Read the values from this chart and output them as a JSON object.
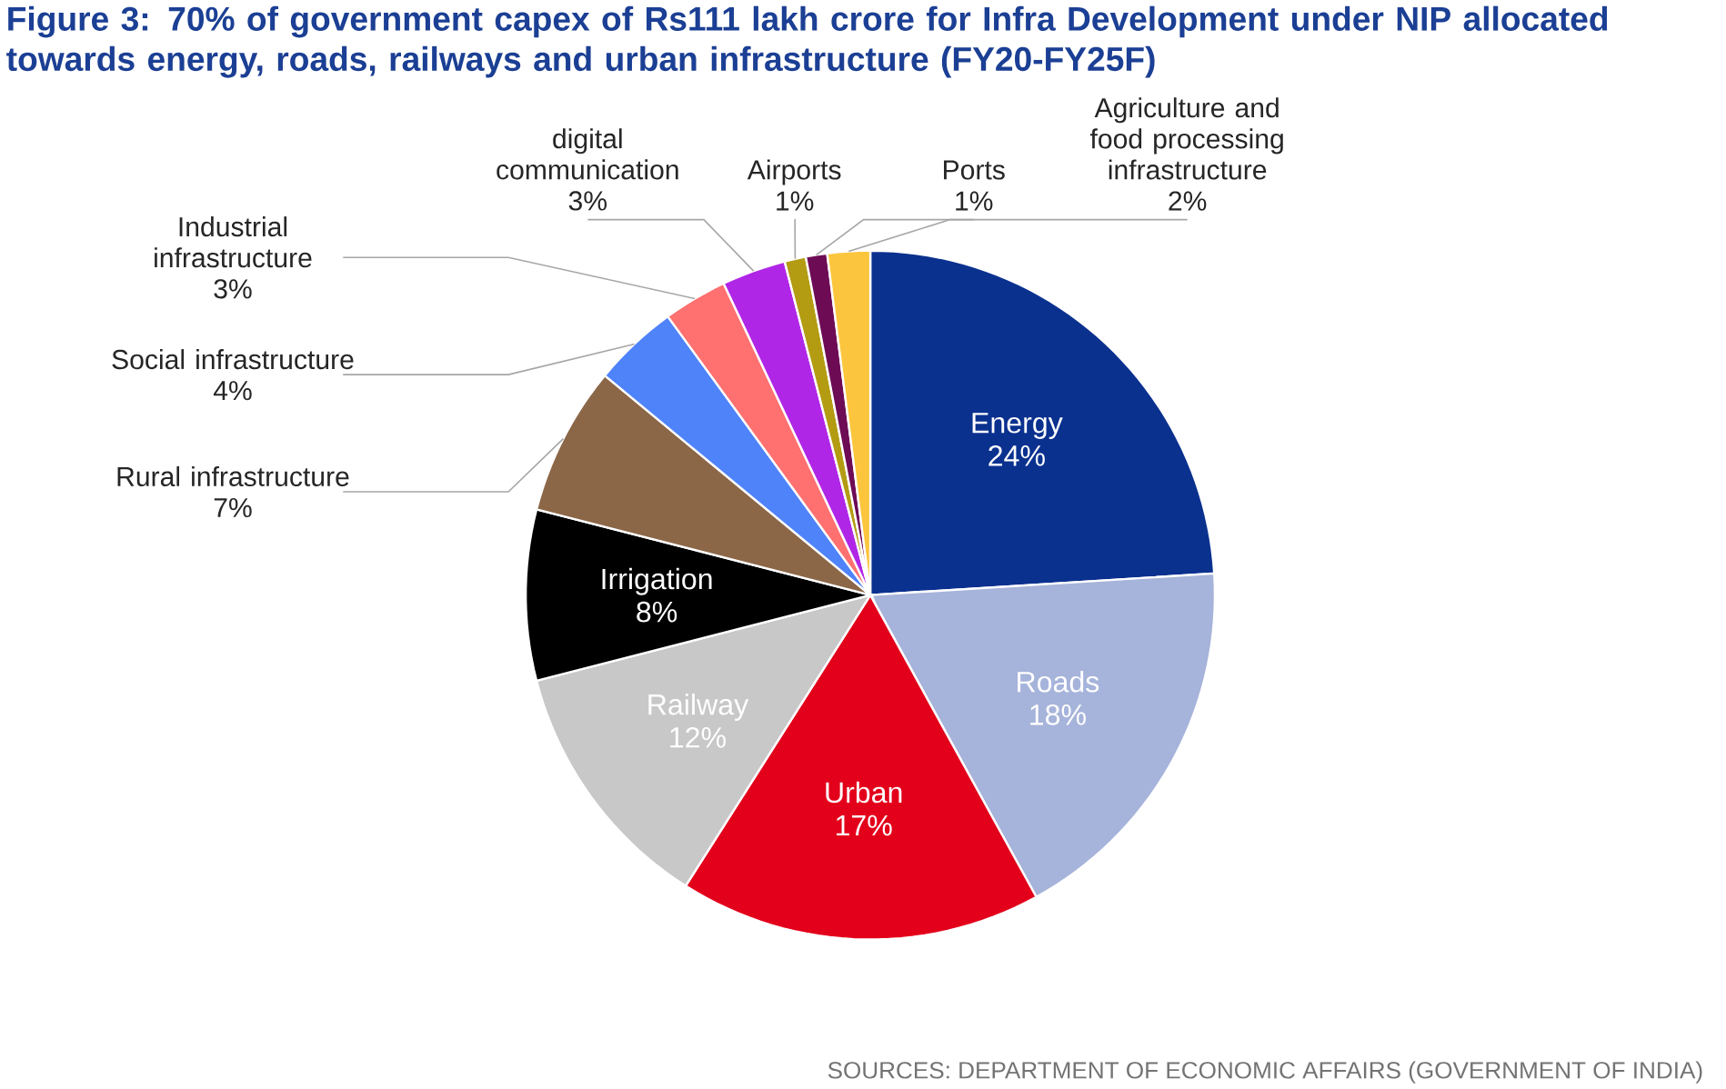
{
  "chart_data": {
    "type": "pie",
    "title": "Figure 3: 70% of government capex of Rs111 lakh crore for Infra Development under NIP allocated towards energy, roads, railways and urban infrastructure (FY20-FY25F)",
    "categories": [
      "Energy",
      "Roads",
      "Urban",
      "Railway",
      "Irrigation",
      "Rural infrastructure",
      "Social infrastructure",
      "Industrial infrastructure",
      "digital communication",
      "Airports",
      "Ports",
      "Agriculture and food processing infrastructure"
    ],
    "values": [
      24,
      18,
      17,
      12,
      8,
      7,
      4,
      3,
      3,
      1,
      1,
      2
    ],
    "colors": [
      "#0b318f",
      "#a6b3da",
      "#e3001b",
      "#c8c8c8",
      "#000000",
      "#8b6748",
      "#4f83fa",
      "#ff7070",
      "#b026e6",
      "#b39c12",
      "#6e0b55",
      "#fbc63e"
    ],
    "value_labels": [
      "24%",
      "18%",
      "17%",
      "12%",
      "8%",
      "7%",
      "4%",
      "3%",
      "3%",
      "1%",
      "1%",
      "2%"
    ],
    "annotations": [
      "SOURCES: DEPARTMENT OF ECONOMIC AFFAIRS (GOVERNMENT OF INDIA)"
    ]
  }
}
